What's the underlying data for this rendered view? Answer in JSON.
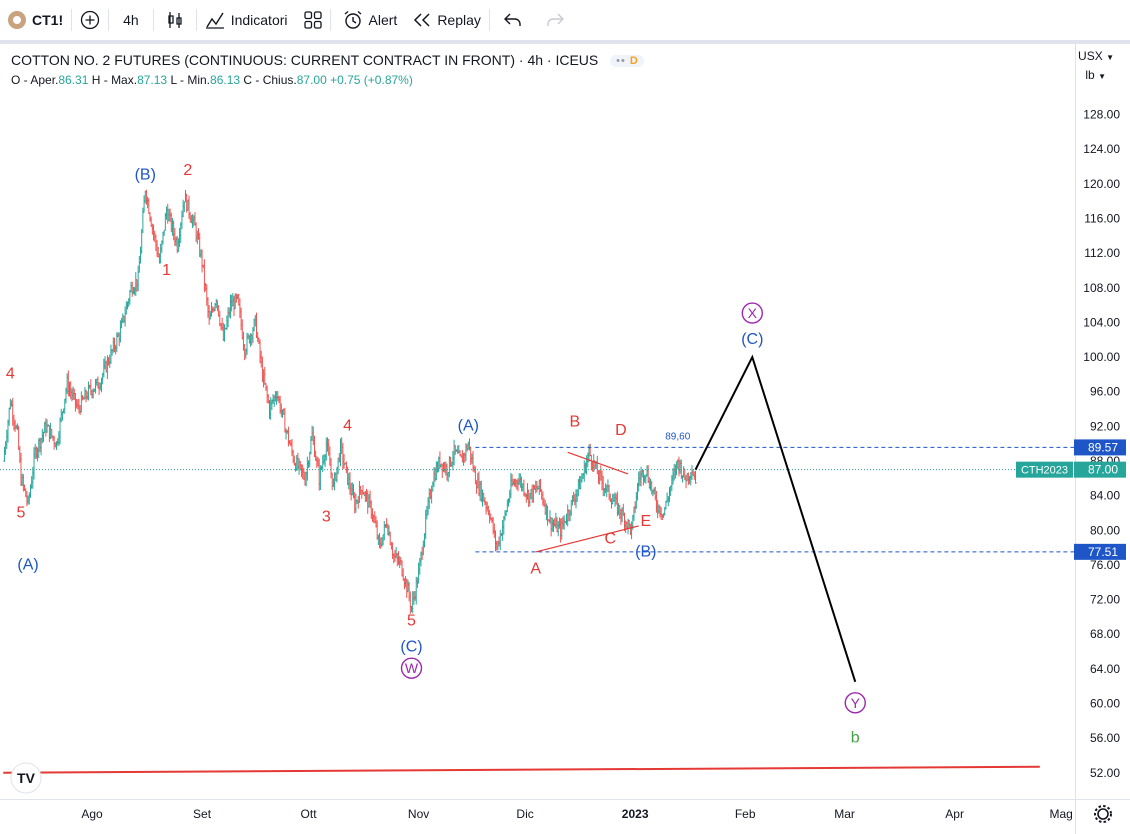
{
  "toolbar": {
    "symbol": "CT1!",
    "interval": "4h",
    "indicators_label": "Indicatori",
    "alert_label": "Alert",
    "replay_label": "Replay"
  },
  "legend": {
    "title": "COTTON NO. 2 FUTURES (CONTINUOUS: CURRENT CONTRACT IN FRONT) · 4h · ICEUS",
    "badge": "D",
    "ohlc": {
      "o_label": "O - Aper.",
      "o": "86.31",
      "h_label": "H - Max.",
      "h": "87.13",
      "l_label": "L - Min.",
      "l": "86.13",
      "c_label": "C - Chius.",
      "c": "87.00",
      "change": "+0.75 (+0.87%)"
    }
  },
  "price_axis": {
    "currency": "USX",
    "unit": "lb",
    "ticks": [
      128,
      124,
      120,
      116,
      112,
      108,
      104,
      100,
      96,
      92,
      88,
      84,
      80,
      76,
      72,
      68,
      64,
      60,
      56,
      52
    ],
    "tick_labels": [
      "128.00",
      "124.00",
      "120.00",
      "116.00",
      "112.00",
      "108.00",
      "104.00",
      "100.00",
      "96.00",
      "92.00",
      "88.00",
      "84.00",
      "80.00",
      "76.00",
      "72.00",
      "68.00",
      "64.00",
      "60.00",
      "56.00",
      "52.00"
    ]
  },
  "time_axis": {
    "labels": [
      "Ago",
      "Set",
      "Ott",
      "Nov",
      "Dic",
      "2023",
      "Feb",
      "Mar",
      "Apr",
      "Mag"
    ]
  },
  "chart_data": {
    "type": "line",
    "title": "COTTON NO. 2 FUTURES (CONTINUOUS: CURRENT CONTRACT IN FRONT) · 4h · ICEUS",
    "x_unit": "days",
    "x_axis_labels": [
      {
        "label": "Ago",
        "day": 1
      },
      {
        "label": "Set",
        "day": 32
      },
      {
        "label": "Ott",
        "day": 62
      },
      {
        "label": "Nov",
        "day": 93
      },
      {
        "label": "Dic",
        "day": 123
      },
      {
        "label": "2023",
        "day": 154
      },
      {
        "label": "Feb",
        "day": 185
      },
      {
        "label": "Mar",
        "day": 213
      },
      {
        "label": "Apr",
        "day": 244
      },
      {
        "label": "Mag",
        "day": 274
      }
    ],
    "y_range": [
      50,
      132
    ],
    "series": [
      {
        "points": [
          [
            -24,
            88
          ],
          [
            -22,
            95
          ],
          [
            -20,
            91
          ],
          [
            -19,
            86
          ],
          [
            -17,
            83
          ],
          [
            -15,
            89
          ],
          [
            -12,
            92
          ],
          [
            -9,
            90
          ],
          [
            -6,
            97
          ],
          [
            -3,
            94
          ],
          [
            0,
            96
          ],
          [
            3,
            97
          ],
          [
            6,
            100
          ],
          [
            9,
            103
          ],
          [
            12,
            108
          ],
          [
            14,
            109
          ],
          [
            16,
            119.5
          ],
          [
            18,
            115
          ],
          [
            20,
            111
          ],
          [
            22,
            117
          ],
          [
            25,
            113
          ],
          [
            27,
            118.5
          ],
          [
            30,
            115
          ],
          [
            32,
            111
          ],
          [
            34,
            104
          ],
          [
            36,
            107
          ],
          [
            38,
            102
          ],
          [
            40,
            106
          ],
          [
            42,
            106.5
          ],
          [
            44,
            101
          ],
          [
            47,
            104
          ],
          [
            49,
            98
          ],
          [
            51,
            94
          ],
          [
            53,
            96
          ],
          [
            56,
            91
          ],
          [
            58,
            88
          ],
          [
            61,
            86
          ],
          [
            63,
            91
          ],
          [
            65,
            86
          ],
          [
            67,
            90
          ],
          [
            69,
            85
          ],
          [
            71,
            89.5
          ],
          [
            73,
            86
          ],
          [
            75,
            83
          ],
          [
            77,
            85
          ],
          [
            80,
            82
          ],
          [
            82,
            78
          ],
          [
            84,
            81
          ],
          [
            86,
            77
          ],
          [
            88,
            76
          ],
          [
            90,
            73
          ],
          [
            91,
            71
          ],
          [
            93,
            75
          ],
          [
            95,
            81
          ],
          [
            97,
            86
          ],
          [
            99,
            88
          ],
          [
            101,
            87
          ],
          [
            103,
            89
          ],
          [
            105,
            88
          ],
          [
            107,
            90
          ],
          [
            109,
            86
          ],
          [
            111,
            84
          ],
          [
            113,
            82
          ],
          [
            115,
            78
          ],
          [
            117,
            81
          ],
          [
            119,
            85
          ],
          [
            121,
            86
          ],
          [
            124,
            84
          ],
          [
            127,
            85
          ],
          [
            130,
            81
          ],
          [
            133,
            80
          ],
          [
            136,
            83
          ],
          [
            139,
            86
          ],
          [
            141,
            89
          ],
          [
            144,
            86
          ],
          [
            147,
            84
          ],
          [
            150,
            82
          ],
          [
            153,
            80
          ],
          [
            155,
            86
          ],
          [
            157,
            87
          ],
          [
            160,
            83
          ],
          [
            162,
            82
          ],
          [
            164,
            85
          ],
          [
            166,
            88
          ],
          [
            168,
            86
          ],
          [
            170,
            87
          ],
          [
            171,
            86
          ]
        ]
      }
    ],
    "projection": {
      "points": [
        [
          171,
          87
        ],
        [
          187,
          100
        ],
        [
          216,
          62.5
        ]
      ]
    },
    "horizontal_levels": [
      {
        "value": 89.57,
        "label": "89.57",
        "color": "#1e56c8"
      },
      {
        "value": 77.51,
        "label": "77.51",
        "color": "#1e56c8"
      }
    ],
    "current_price": {
      "value": 87.0,
      "label": "87.00",
      "symbol": "CTH2023"
    },
    "trendlines": [
      {
        "points": [
          [
            135,
            89
          ],
          [
            152,
            86.5
          ]
        ],
        "color": "#e53935"
      },
      {
        "points": [
          [
            126,
            77.5
          ],
          [
            155,
            80.5
          ]
        ],
        "color": "#e53935"
      },
      {
        "points": [
          [
            -24,
            52
          ],
          [
            268,
            52.7
          ]
        ],
        "color": "#e53935"
      }
    ],
    "annotations": [
      {
        "text": "4",
        "x": -22,
        "y": 97.5,
        "color": "#e53935"
      },
      {
        "text": "5",
        "x": -19,
        "y": 81.5,
        "color": "#e53935"
      },
      {
        "text": "(A)",
        "x": -17,
        "y": 75.5,
        "color": "#1e56c8"
      },
      {
        "text": "(B)",
        "x": 16,
        "y": 120.5,
        "color": "#1e56c8"
      },
      {
        "text": "2",
        "x": 28,
        "y": 121,
        "color": "#e53935"
      },
      {
        "text": "1",
        "x": 22,
        "y": 109.5,
        "color": "#e53935"
      },
      {
        "text": "4",
        "x": 73,
        "y": 91.5,
        "color": "#e53935"
      },
      {
        "text": "3",
        "x": 67,
        "y": 81,
        "color": "#e53935"
      },
      {
        "text": "5",
        "x": 91,
        "y": 69,
        "color": "#e53935"
      },
      {
        "text": "(C)",
        "x": 91,
        "y": 66,
        "color": "#1e56c8"
      },
      {
        "text": "W",
        "x": 91,
        "y": 63.5,
        "color": "#9c27b0",
        "circled": true
      },
      {
        "text": "(A)",
        "x": 107,
        "y": 91.5,
        "color": "#1e56c8"
      },
      {
        "text": "A",
        "x": 126,
        "y": 75,
        "color": "#e53935"
      },
      {
        "text": "B",
        "x": 137,
        "y": 92,
        "color": "#e53935"
      },
      {
        "text": "D",
        "x": 150,
        "y": 91,
        "color": "#e53935"
      },
      {
        "text": "89,60",
        "x": 166,
        "y": 90.5,
        "color": "#1e56c8",
        "small": true
      },
      {
        "text": "C",
        "x": 147,
        "y": 78.5,
        "color": "#e53935"
      },
      {
        "text": "E",
        "x": 157,
        "y": 80.5,
        "color": "#e53935"
      },
      {
        "text": "(B)",
        "x": 157,
        "y": 77,
        "color": "#1e56c8"
      },
      {
        "text": "X",
        "x": 187,
        "y": 104.5,
        "color": "#9c27b0",
        "circled": true
      },
      {
        "text": "(C)",
        "x": 187,
        "y": 101.5,
        "color": "#1e56c8"
      },
      {
        "text": "Y",
        "x": 216,
        "y": 59.5,
        "color": "#9c27b0",
        "circled": true
      },
      {
        "text": "b",
        "x": 216,
        "y": 55.5,
        "color": "#43a047"
      }
    ]
  }
}
